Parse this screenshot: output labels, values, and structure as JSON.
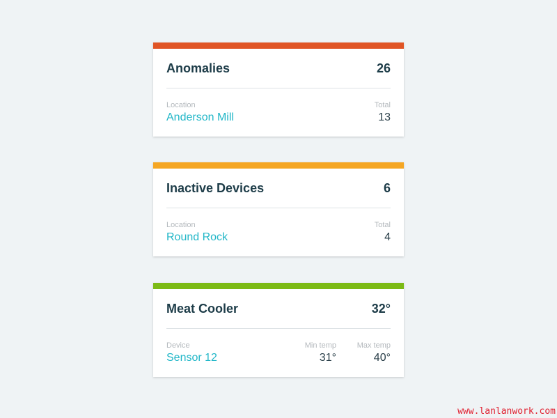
{
  "cards": [
    {
      "title": "Anomalies",
      "value": "26",
      "color": "#e05425",
      "left": {
        "label": "Location",
        "value": "Anderson Mill"
      },
      "right": {
        "label": "Total",
        "value": "13"
      }
    },
    {
      "title": "Inactive Devices",
      "value": "6",
      "color": "#f5a623",
      "left": {
        "label": "Location",
        "value": "Round Rock"
      },
      "right": {
        "label": "Total",
        "value": "4"
      }
    },
    {
      "title": "Meat Cooler",
      "value": "32°",
      "color": "#7cba15",
      "left": {
        "label": "Device",
        "value": "Sensor 12"
      },
      "mid": {
        "label": "Min temp",
        "value": "31°"
      },
      "right": {
        "label": "Max temp",
        "value": "40°"
      }
    }
  ],
  "watermark": "www.lanlanwork.com"
}
